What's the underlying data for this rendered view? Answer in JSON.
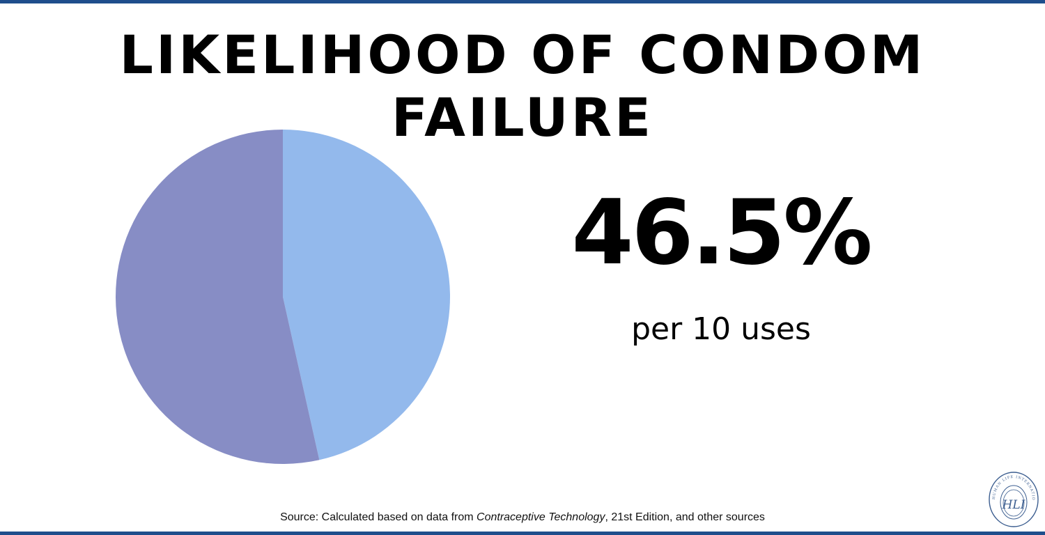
{
  "header": {
    "title": "LIKELIHOOD OF CONDOM FAILURE"
  },
  "stat": {
    "value": "46.5%",
    "label": "per 10 uses"
  },
  "source": {
    "prefix": "Source:  Calculated based on data from ",
    "title_italic": "Contraceptive Technology",
    "suffix": ", 21st Edition, and other sources"
  },
  "logo": {
    "name": "human-life-international-seal",
    "text": "HUMAN LIFE INTERNATIONAL",
    "monogram": "HLI"
  },
  "colors": {
    "rule": "#1f4e8c",
    "failure": "#93b9ec",
    "remaining": "#878dc5",
    "logo": "#3b5d8f"
  },
  "chart_data": {
    "type": "pie",
    "title": "LIKELIHOOD OF CONDOM FAILURE",
    "slices": [
      {
        "value": 46.5,
        "color": "#93b9ec"
      },
      {
        "value": 53.5,
        "color": "#878dc5"
      }
    ],
    "start_angle_deg": 0,
    "direction": "clockwise",
    "legend": "none"
  }
}
